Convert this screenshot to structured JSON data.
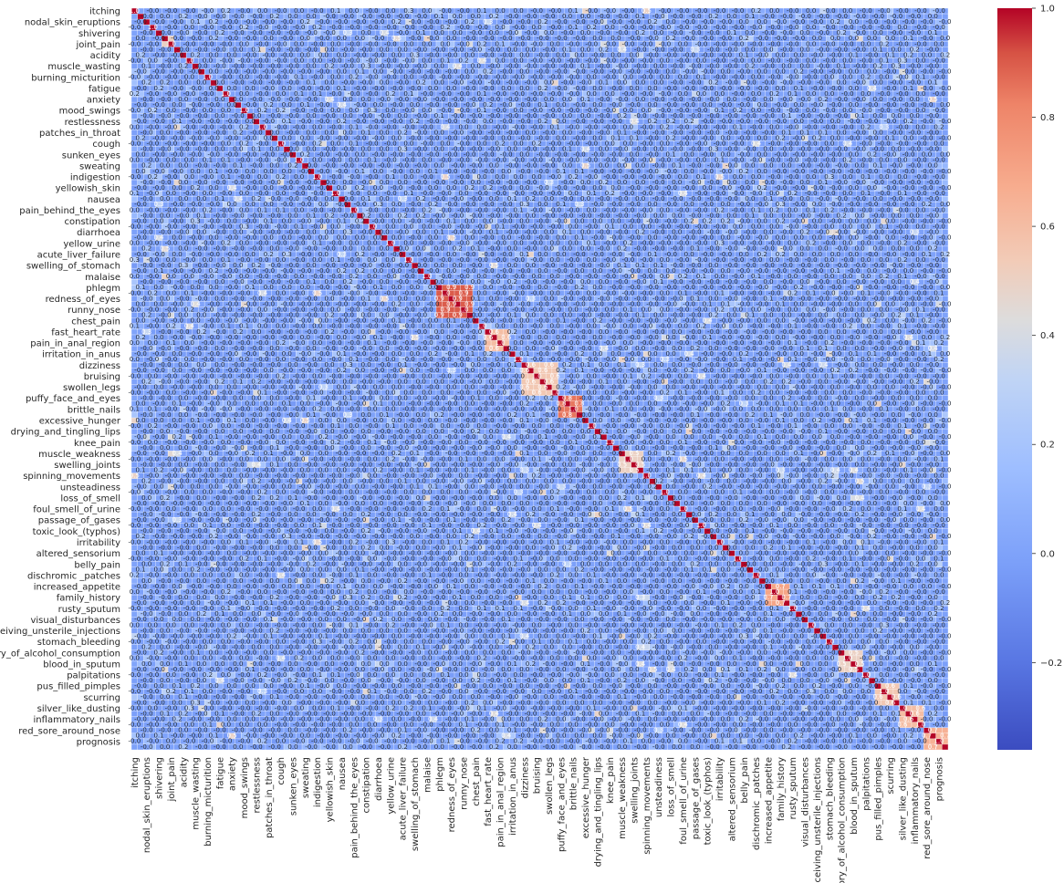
{
  "chart_data": {
    "type": "heatmap",
    "title": "",
    "colormap": "coolwarm",
    "cell_annotations": true,
    "cell_gap_color": "#ffffff",
    "labels": [
      "itching",
      "nodal_skin_eruptions",
      "shivering",
      "joint_pain",
      "acidity",
      "muscle_wasting",
      "burning_micturition",
      "fatigue",
      "anxiety",
      "mood_swings",
      "restlessness",
      "patches_in_throat",
      "cough",
      "sunken_eyes",
      "sweating",
      "indigestion",
      "yellowish_skin",
      "nausea",
      "pain_behind_the_eyes",
      "constipation",
      "diarrhoea",
      "yellow_urine",
      "acute_liver_failure",
      "swelling_of_stomach",
      "malaise",
      "phlegm",
      "redness_of_eyes",
      "runny_nose",
      "chest_pain",
      "fast_heart_rate",
      "pain_in_anal_region",
      "irritation_in_anus",
      "dizziness",
      "bruising",
      "swollen_legs",
      "puffy_face_and_eyes",
      "brittle_nails",
      "excessive_hunger",
      "drying_and_tingling_lips",
      "knee_pain",
      "muscle_weakness",
      "swelling_joints",
      "spinning_movements",
      "unsteadiness",
      "loss_of_smell",
      "foul_smell_of_urine",
      "passage_of_gases",
      "toxic_look_(typhos)",
      "irritability",
      "altered_sensorium",
      "belly_pain",
      "dischromic _patches",
      "increased_appetite",
      "family_history",
      "rusty_sputum",
      "visual_disturbances",
      "receiving_unsterile_injections",
      "stomach_bleeding",
      "history_of_alcohol_consumption",
      "blood_in_sputum",
      "palpitations",
      "pus_filled_pimples",
      "scurring",
      "silver_like_dusting",
      "inflammatory_nails",
      "red_sore_around_nose",
      "prognosis"
    ],
    "colorbar": {
      "vmin": -0.36,
      "vmax": 1.0,
      "ticks": [
        "1.0",
        "0.8",
        "0.6",
        "0.4",
        "0.2",
        "0.0",
        "−0.2"
      ],
      "tick_values": [
        1.0,
        0.8,
        0.6,
        0.4,
        0.2,
        0.0,
        -0.2
      ]
    },
    "diagonal_value": 1.0,
    "strong_blocks": [
      {
        "from": "phlegm",
        "to": "runny_nose",
        "value": 0.9
      },
      {
        "from": "fast_heart_rate",
        "to": "pain_in_anal_region",
        "value": 0.6
      },
      {
        "from": "dizziness",
        "to": "swollen_legs",
        "value": 0.55
      },
      {
        "from": "puffy_face_and_eyes",
        "to": "brittle_nails",
        "value": 0.85
      },
      {
        "from": "muscle_weakness",
        "to": "swelling_joints",
        "value": 0.5
      },
      {
        "from": "increased_appetite",
        "to": "family_history",
        "value": 0.7
      },
      {
        "from": "history_of_alcohol_consumption",
        "to": "blood_in_sputum",
        "value": 0.5
      },
      {
        "from": "pus_filled_pimples",
        "to": "scurring",
        "value": 0.55
      },
      {
        "from": "silver_like_dusting",
        "to": "inflammatory_nails",
        "value": 0.6
      },
      {
        "from": "red_sore_around_nose",
        "to": "prognosis",
        "value": 0.65
      }
    ]
  }
}
